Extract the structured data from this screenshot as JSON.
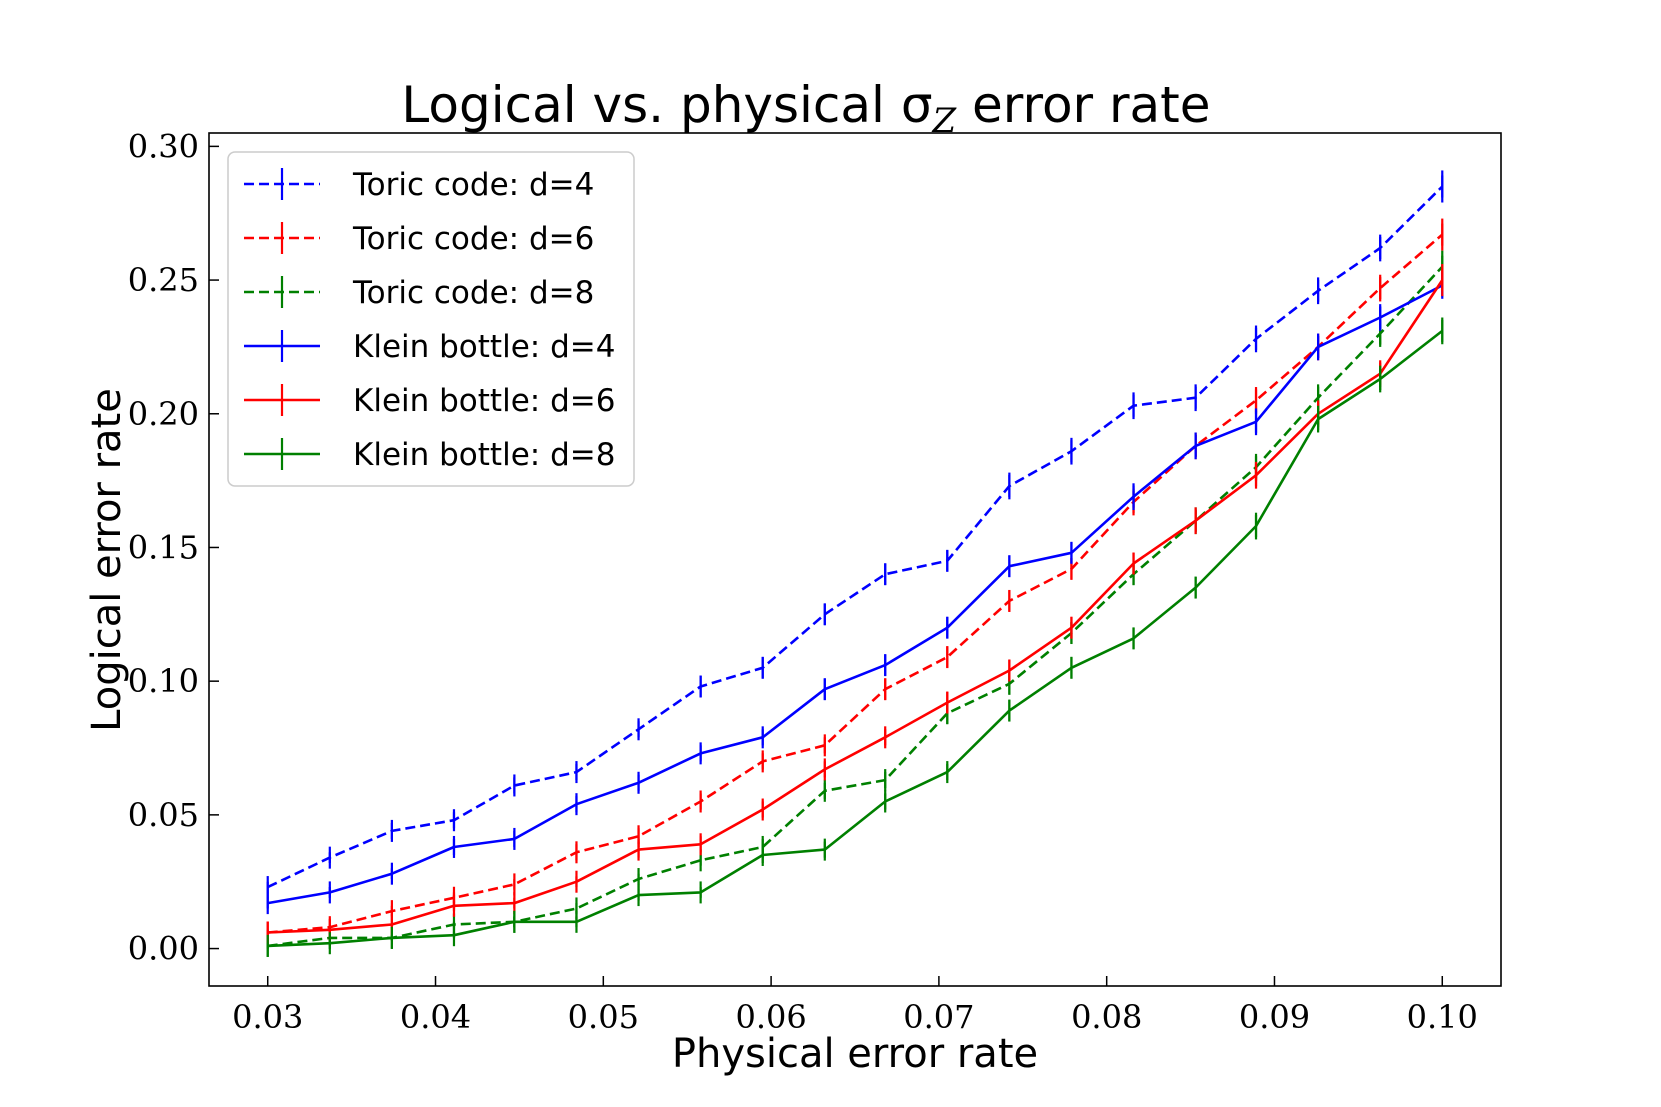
{
  "chart_data": {
    "type": "line",
    "title": "Logical vs. physical σ",
    "title_subscript": "Z",
    "title_suffix": " error rate",
    "xlabel": "Physical error rate",
    "ylabel": "Logical error rate",
    "xlim": [
      0.0265,
      0.1035
    ],
    "ylim": [
      -0.014,
      0.305
    ],
    "xticks": [
      0.03,
      0.04,
      0.05,
      0.06,
      0.07,
      0.08,
      0.09,
      0.1
    ],
    "xtick_labels": [
      "0.03",
      "0.04",
      "0.05",
      "0.06",
      "0.07",
      "0.08",
      "0.09",
      "0.10"
    ],
    "yticks": [
      0.0,
      0.05,
      0.1,
      0.15,
      0.2,
      0.25,
      0.3
    ],
    "ytick_labels": [
      "0.00",
      "0.05",
      "0.10",
      "0.15",
      "0.20",
      "0.25",
      "0.30"
    ],
    "grid": false,
    "legend_position": "top-left",
    "x": [
      0.03,
      0.0337,
      0.0374,
      0.0411,
      0.0447,
      0.0484,
      0.0521,
      0.0558,
      0.0595,
      0.0632,
      0.0668,
      0.0705,
      0.0742,
      0.0779,
      0.0816,
      0.0853,
      0.0889,
      0.0926,
      0.0963,
      0.1
    ],
    "series": [
      {
        "name": "Toric code: d=4",
        "color": "#0000ff",
        "dashed": true,
        "values": [
          0.023,
          0.034,
          0.044,
          0.048,
          0.061,
          0.066,
          0.082,
          0.098,
          0.105,
          0.125,
          0.14,
          0.145,
          0.173,
          0.186,
          0.203,
          0.206,
          0.228,
          0.246,
          0.262,
          0.285
        ],
        "err": [
          0.002,
          0.002,
          0.003,
          0.003,
          0.003,
          0.003,
          0.003,
          0.004,
          0.004,
          0.004,
          0.004,
          0.004,
          0.005,
          0.005,
          0.005,
          0.005,
          0.005,
          0.005,
          0.005,
          0.006
        ]
      },
      {
        "name": "Toric code: d=6",
        "color": "#ff0000",
        "dashed": true,
        "values": [
          0.006,
          0.008,
          0.014,
          0.019,
          0.024,
          0.036,
          0.042,
          0.055,
          0.07,
          0.076,
          0.097,
          0.109,
          0.13,
          0.142,
          0.167,
          0.188,
          0.205,
          0.225,
          0.247,
          0.267
        ],
        "err": [
          0.001,
          0.001,
          0.002,
          0.002,
          0.002,
          0.003,
          0.003,
          0.003,
          0.003,
          0.003,
          0.004,
          0.004,
          0.004,
          0.004,
          0.005,
          0.005,
          0.005,
          0.005,
          0.005,
          0.006
        ]
      },
      {
        "name": "Toric code: d=8",
        "color": "#008000",
        "dashed": true,
        "values": [
          0.001,
          0.004,
          0.004,
          0.009,
          0.01,
          0.015,
          0.026,
          0.033,
          0.038,
          0.059,
          0.063,
          0.088,
          0.099,
          0.118,
          0.14,
          0.16,
          0.18,
          0.206,
          0.23,
          0.255
        ],
        "err": [
          0.001,
          0.001,
          0.001,
          0.001,
          0.002,
          0.002,
          0.002,
          0.002,
          0.003,
          0.003,
          0.003,
          0.004,
          0.004,
          0.004,
          0.004,
          0.005,
          0.005,
          0.005,
          0.005,
          0.006
        ]
      },
      {
        "name": "Klein bottle: d=4",
        "color": "#0000ff",
        "dashed": false,
        "values": [
          0.017,
          0.021,
          0.028,
          0.038,
          0.041,
          0.054,
          0.062,
          0.073,
          0.079,
          0.097,
          0.106,
          0.12,
          0.143,
          0.148,
          0.169,
          0.188,
          0.197,
          0.225,
          0.236,
          0.248
        ],
        "err": [
          0.002,
          0.002,
          0.002,
          0.003,
          0.003,
          0.003,
          0.003,
          0.003,
          0.003,
          0.004,
          0.004,
          0.004,
          0.004,
          0.004,
          0.005,
          0.005,
          0.005,
          0.005,
          0.005,
          0.005
        ]
      },
      {
        "name": "Klein bottle: d=6",
        "color": "#ff0000",
        "dashed": false,
        "values": [
          0.006,
          0.007,
          0.009,
          0.016,
          0.017,
          0.025,
          0.037,
          0.039,
          0.052,
          0.067,
          0.079,
          0.092,
          0.104,
          0.12,
          0.144,
          0.16,
          0.177,
          0.2,
          0.215,
          0.25
        ],
        "err": [
          0.001,
          0.001,
          0.001,
          0.002,
          0.002,
          0.002,
          0.003,
          0.003,
          0.003,
          0.003,
          0.003,
          0.004,
          0.004,
          0.004,
          0.004,
          0.005,
          0.005,
          0.005,
          0.005,
          0.006
        ]
      },
      {
        "name": "Klein bottle: d=8",
        "color": "#008000",
        "dashed": false,
        "values": [
          0.001,
          0.002,
          0.004,
          0.005,
          0.01,
          0.01,
          0.02,
          0.021,
          0.035,
          0.037,
          0.055,
          0.066,
          0.089,
          0.105,
          0.116,
          0.135,
          0.158,
          0.198,
          0.213,
          0.231
        ],
        "err": [
          0.001,
          0.001,
          0.001,
          0.001,
          0.002,
          0.002,
          0.002,
          0.002,
          0.003,
          0.003,
          0.003,
          0.003,
          0.004,
          0.004,
          0.004,
          0.004,
          0.005,
          0.005,
          0.005,
          0.005
        ]
      }
    ]
  }
}
